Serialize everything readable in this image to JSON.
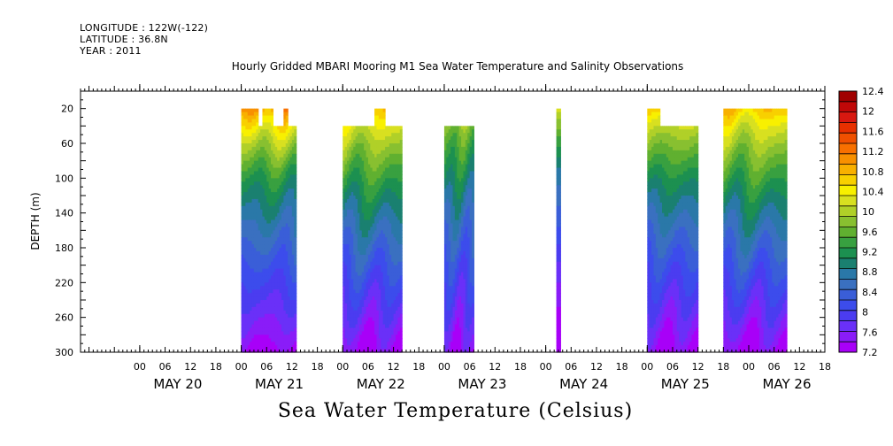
{
  "header": {
    "longitude": "LONGITUDE : 122W(-122)",
    "latitude": "LATITUDE : 36.8N",
    "year": "YEAR : 2011"
  },
  "chart_data": {
    "type": "heatmap",
    "title": "Hourly Gridded MBARI Mooring M1 Sea Water Temperature and Salinity Observations",
    "bottom_title": "Sea Water Temperature (Celsius)",
    "ylabel": "DEPTH (m)",
    "y_axis": "depth, increasing downward",
    "ylim": [
      0,
      300
    ],
    "yticks": [
      20,
      60,
      100,
      140,
      180,
      220,
      260,
      300
    ],
    "xlim_hours": [
      -14,
      162
    ],
    "x_hour_labels": [
      "00",
      "06",
      "12",
      "18"
    ],
    "x_day_labels": [
      "MAY 20",
      "MAY 21",
      "MAY 22",
      "MAY 23",
      "MAY 24",
      "MAY 25",
      "MAY 26"
    ],
    "colorbar": {
      "levels": [
        7.2,
        7.4,
        7.6,
        7.8,
        8.0,
        8.2,
        8.4,
        8.6,
        8.8,
        9.0,
        9.2,
        9.4,
        9.6,
        9.8,
        10.0,
        10.2,
        10.4,
        10.6,
        10.8,
        11.0,
        11.2,
        11.4,
        11.6,
        11.8,
        12.0,
        12.2,
        12.4
      ],
      "labels": [
        "12.4",
        "12",
        "11.6",
        "11.2",
        "10.8",
        "10.4",
        "10",
        "9.6",
        "9.2",
        "8.8",
        "8.4",
        "8",
        "7.6",
        "7.2"
      ],
      "colors": [
        "#a800f8",
        "#8a1cf8",
        "#6a30f8",
        "#4b3cf0",
        "#3c4cec",
        "#3a5ed8",
        "#3a70c0",
        "#2a78a8",
        "#1a8070",
        "#1c9050",
        "#38a040",
        "#60b030",
        "#88c030",
        "#b0d028",
        "#d8e020",
        "#f8f000",
        "#f8d000",
        "#f8b000",
        "#f89000",
        "#f87000",
        "#f05000",
        "#e83000",
        "#d81810",
        "#c00808",
        "#a00000"
      ]
    },
    "data_blocks": [
      {
        "start_hour": 24,
        "end_hour": 37,
        "top_depth": 20,
        "gaps": [
          [
            28,
            28.8
          ],
          [
            31.5,
            33.8
          ],
          [
            35,
            37
          ]
        ],
        "surface_value": 10.9,
        "mid_value": 9.2,
        "bottom_value": 7.3
      },
      {
        "start_hour": 48,
        "end_hour": 62,
        "top_depth": 20,
        "gaps": [
          [
            48,
            55.5
          ],
          [
            58,
            62
          ]
        ],
        "surface_value": 10.6,
        "mid_value": 9.3,
        "bottom_value": 7.3
      },
      {
        "start_hour": 72,
        "end_hour": 79,
        "top_depth": 40,
        "gaps": [],
        "surface_value": 10.0,
        "mid_value": 9.0,
        "bottom_value": 7.4
      },
      {
        "start_hour": 98.5,
        "end_hour": 99.5,
        "top_depth": 20,
        "gaps": [],
        "surface_value": 10.4,
        "mid_value": 8.6,
        "bottom_value": 7.2
      },
      {
        "start_hour": 120,
        "end_hour": 132,
        "top_depth": 20,
        "gaps": [
          [
            123,
            132
          ]
        ],
        "surface_value": 10.5,
        "mid_value": 9.1,
        "bottom_value": 7.3
      },
      {
        "start_hour": 138,
        "end_hour": 153,
        "top_depth": 20,
        "gaps": [],
        "surface_value": 10.6,
        "mid_value": 9.3,
        "bottom_value": 7.3
      }
    ]
  }
}
